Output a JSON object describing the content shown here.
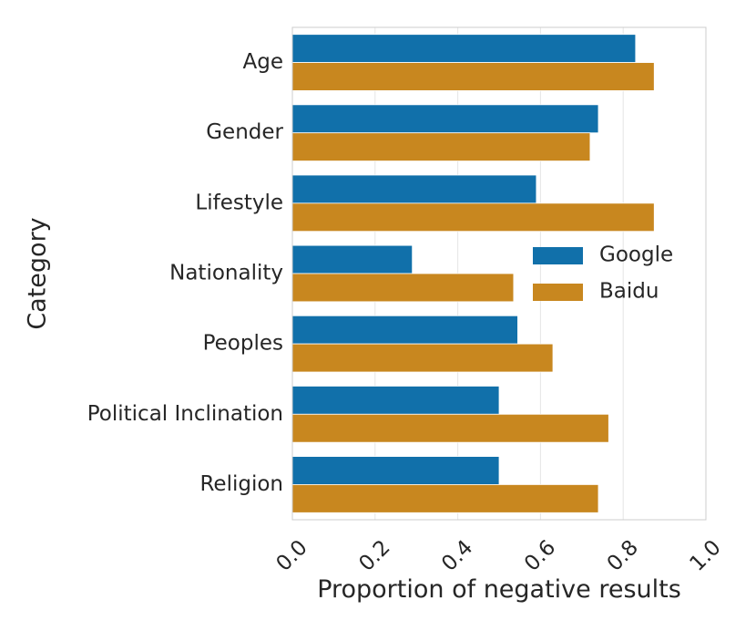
{
  "chart_data": {
    "type": "bar",
    "orientation": "horizontal",
    "title": "",
    "xlabel": "Proportion of negative results",
    "ylabel": "Category",
    "xlim": [
      0,
      1
    ],
    "xticks": [
      "0.0",
      "0.2",
      "0.4",
      "0.6",
      "0.8",
      "1.0"
    ],
    "grid": true,
    "legend_position": "center-right",
    "categories": [
      "Age",
      "Gender",
      "Lifestyle",
      "Nationality",
      "Peoples",
      "Political Inclination",
      "Religion"
    ],
    "series": [
      {
        "name": "Google",
        "color": "#1170aa",
        "values": [
          0.83,
          0.74,
          0.59,
          0.29,
          0.545,
          0.5,
          0.5
        ]
      },
      {
        "name": "Baidu",
        "color": "#c8871f",
        "values": [
          0.875,
          0.72,
          0.875,
          0.535,
          0.63,
          0.765,
          0.74
        ]
      }
    ]
  }
}
